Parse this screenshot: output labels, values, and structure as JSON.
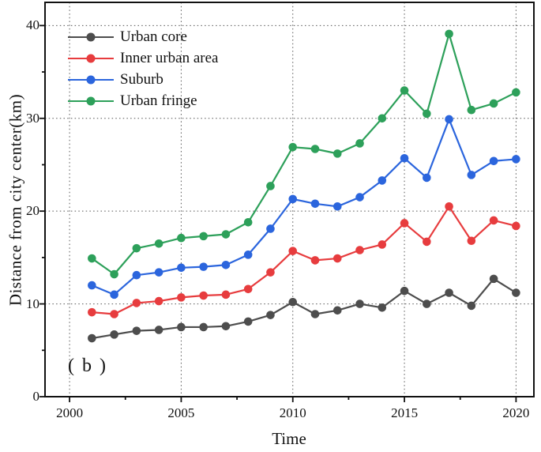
{
  "figure": {
    "annotation": "( b )",
    "background": "#ffffff",
    "frame_color": "#111111",
    "grid_color": "#555555"
  },
  "chart_data": {
    "type": "line",
    "title": "",
    "xlabel": "Time",
    "ylabel": "Distance from city center(km)",
    "xlim": [
      1998.9,
      2020.8
    ],
    "ylim": [
      0,
      42.5
    ],
    "x_major_ticks": [
      2000,
      2005,
      2010,
      2015,
      2020
    ],
    "x_minor_ticks": [
      2002.5,
      2007.5,
      2012.5,
      2017.5
    ],
    "y_major_ticks": [
      0,
      10,
      20,
      30,
      40
    ],
    "y_minor_ticks": [
      5,
      15,
      25,
      35
    ],
    "grid": {
      "show": true,
      "style": "dotted",
      "at": "major-ticks"
    },
    "legend_position": "top-left",
    "marker": "circle",
    "x": [
      2001,
      2002,
      2003,
      2004,
      2005,
      2006,
      2007,
      2008,
      2009,
      2010,
      2011,
      2012,
      2013,
      2014,
      2015,
      2016,
      2017,
      2018,
      2019,
      2020
    ],
    "series": [
      {
        "name": "Urban core",
        "color": "#4d4d4d",
        "values": [
          6.3,
          6.7,
          7.1,
          7.2,
          7.5,
          7.5,
          7.6,
          8.1,
          8.8,
          10.2,
          8.9,
          9.3,
          10.0,
          9.6,
          11.4,
          10.0,
          11.2,
          9.8,
          12.7,
          11.2
        ]
      },
      {
        "name": "Inner urban area",
        "color": "#e73c3e",
        "values": [
          9.1,
          8.9,
          10.1,
          10.3,
          10.7,
          10.9,
          11.0,
          11.6,
          13.4,
          15.7,
          14.7,
          14.9,
          15.8,
          16.4,
          18.7,
          16.7,
          20.5,
          16.8,
          19.0,
          18.4
        ]
      },
      {
        "name": "Suburb",
        "color": "#2b65dd",
        "values": [
          12.0,
          11.0,
          13.1,
          13.4,
          13.9,
          14.0,
          14.2,
          15.3,
          18.1,
          21.3,
          20.8,
          20.5,
          21.5,
          23.3,
          25.7,
          23.6,
          29.9,
          23.9,
          25.4,
          25.6
        ]
      },
      {
        "name": "Urban fringe",
        "color": "#2da05a",
        "values": [
          14.9,
          13.2,
          16.0,
          16.5,
          17.1,
          17.3,
          17.5,
          18.8,
          22.7,
          26.9,
          26.7,
          26.2,
          27.3,
          30.0,
          33.0,
          30.5,
          39.1,
          30.9,
          31.6,
          32.8
        ]
      }
    ]
  }
}
